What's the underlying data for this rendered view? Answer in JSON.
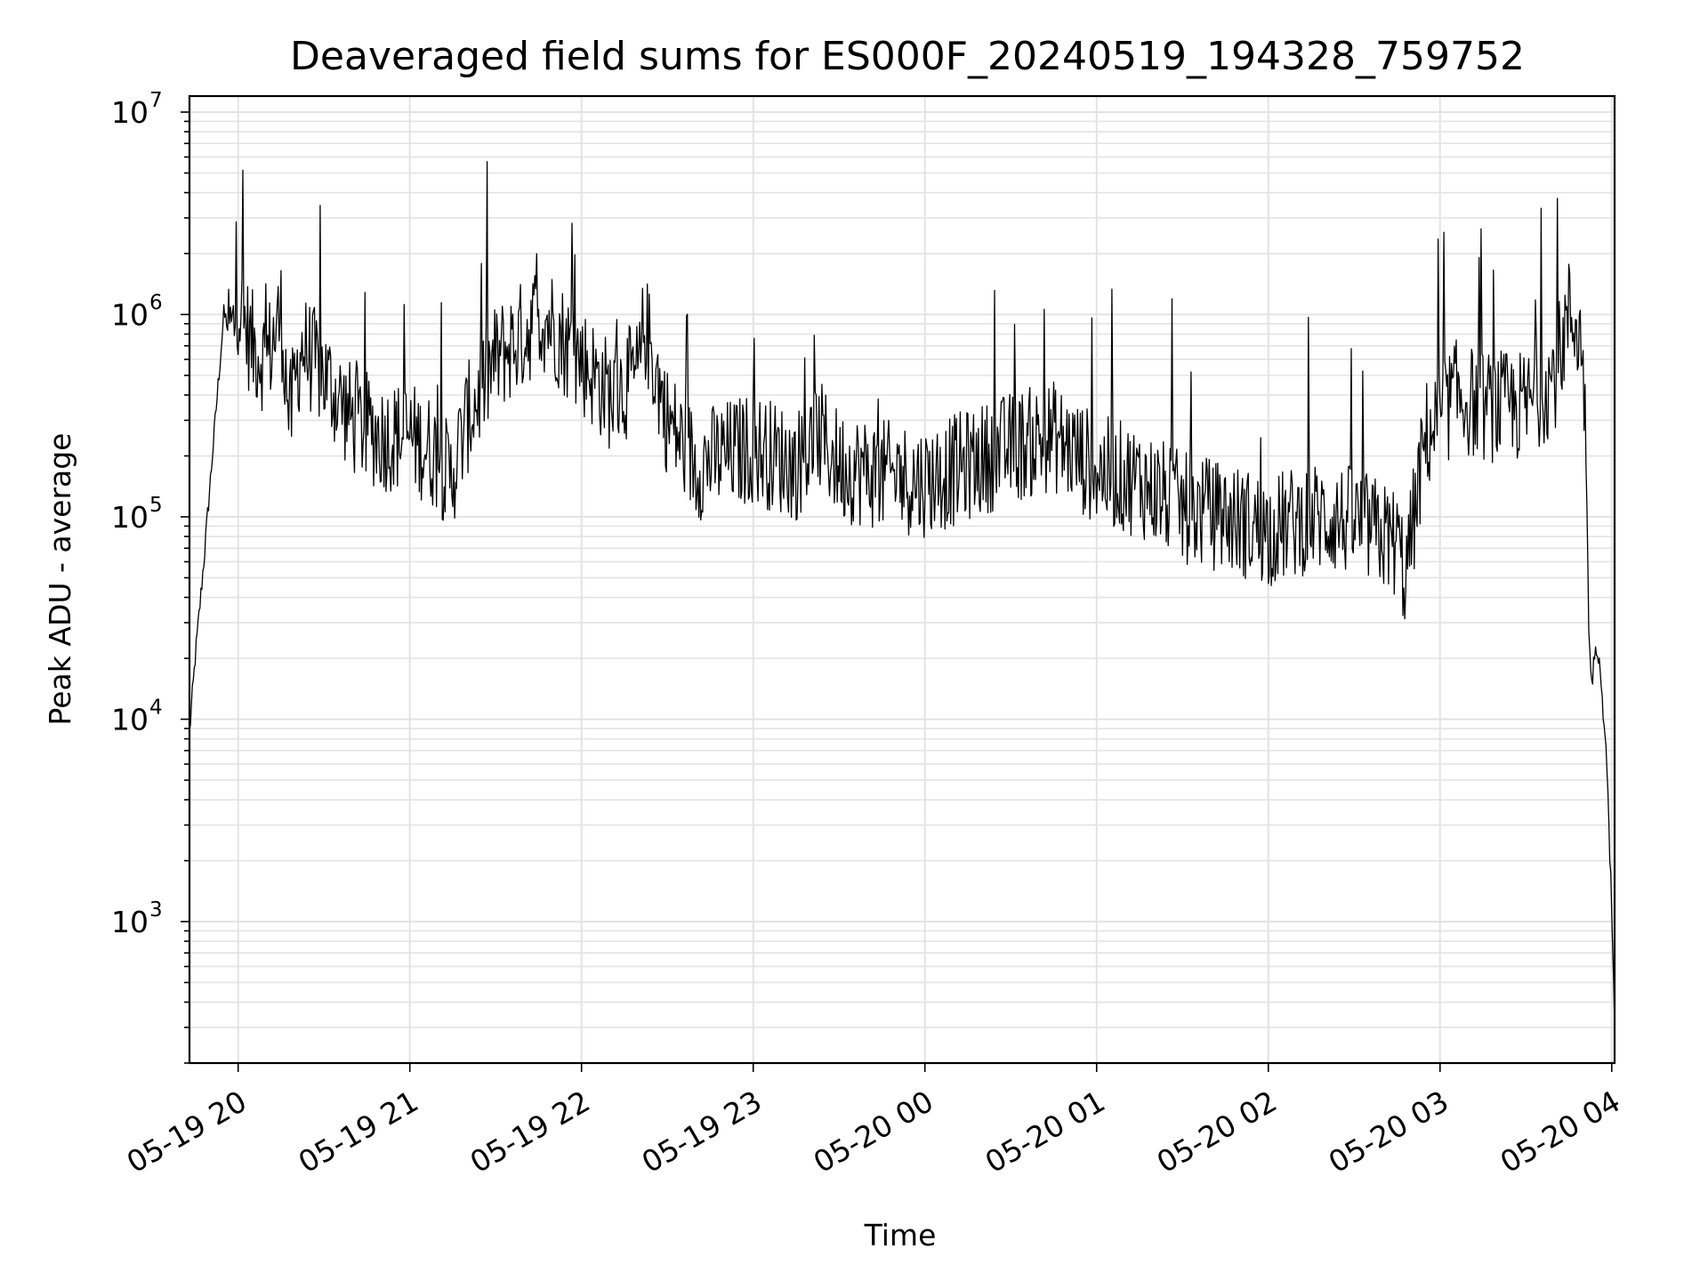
{
  "chart_data": {
    "type": "line",
    "title": "Deaveraged field sums for ES000F_20240519_194328_759752",
    "xlabel": "Time",
    "ylabel": "Peak ADU - average",
    "yscale": "log",
    "ylim": [
      200,
      12000000
    ],
    "xlim": [
      "2024-05-19 19:43",
      "2024-05-20 04:01"
    ],
    "x_ticks": [
      "05-19 20",
      "05-19 21",
      "05-19 22",
      "05-19 23",
      "05-20 00",
      "05-20 01",
      "05-20 02",
      "05-20 03",
      "05-20 04"
    ],
    "y_ticks": [
      {
        "value": 1000,
        "base": "10",
        "exp": "3"
      },
      {
        "value": 10000,
        "base": "10",
        "exp": "4"
      },
      {
        "value": 100000,
        "base": "10",
        "exp": "5"
      },
      {
        "value": 1000000,
        "base": "10",
        "exp": "6"
      },
      {
        "value": 10000000,
        "base": "10",
        "exp": "7"
      }
    ],
    "grid": true,
    "line_color": "#000000",
    "grid_color": "#e3e3e3",
    "series": [
      {
        "x": [
          "2024-05-19 19:43",
          "2024-05-19 19:45",
          "2024-05-19 19:48",
          "2024-05-19 19:52",
          "2024-05-19 19:55",
          "2024-05-19 19:58",
          "2024-05-19 20:00",
          "2024-05-19 20:01",
          "2024-05-19 20:05",
          "2024-05-19 20:10",
          "2024-05-19 20:15",
          "2024-05-19 20:18",
          "2024-05-19 20:22",
          "2024-05-19 20:30",
          "2024-05-19 20:40",
          "2024-05-19 20:50",
          "2024-05-19 21:00",
          "2024-05-19 21:10",
          "2024-05-19 21:14",
          "2024-05-19 21:20",
          "2024-05-19 21:30",
          "2024-05-19 21:40",
          "2024-05-19 21:45",
          "2024-05-19 21:50",
          "2024-05-19 21:55",
          "2024-05-19 22:00",
          "2024-05-19 22:10",
          "2024-05-19 22:20",
          "2024-05-19 22:22",
          "2024-05-19 22:30",
          "2024-05-19 22:40",
          "2024-05-19 22:50",
          "2024-05-19 23:00",
          "2024-05-19 23:15",
          "2024-05-19 23:23",
          "2024-05-19 23:30",
          "2024-05-19 23:45",
          "2024-05-20 00:00",
          "2024-05-20 00:15",
          "2024-05-20 00:30",
          "2024-05-20 00:45",
          "2024-05-20 01:00",
          "2024-05-20 01:15",
          "2024-05-20 01:30",
          "2024-05-20 01:45",
          "2024-05-20 02:00",
          "2024-05-20 02:15",
          "2024-05-20 02:30",
          "2024-05-20 02:40",
          "2024-05-20 02:45",
          "2024-05-20 02:48",
          "2024-05-20 02:50",
          "2024-05-20 02:55",
          "2024-05-20 03:00",
          "2024-05-20 03:05",
          "2024-05-20 03:15",
          "2024-05-20 03:30",
          "2024-05-20 03:40",
          "2024-05-20 03:45",
          "2024-05-20 03:48",
          "2024-05-20 03:50",
          "2024-05-20 03:51",
          "2024-05-20 03:52",
          "2024-05-20 03:53",
          "2024-05-20 03:54",
          "2024-05-20 03:55",
          "2024-05-20 03:56",
          "2024-05-20 03:57",
          "2024-05-20 03:58",
          "2024-05-20 03:59",
          "2024-05-20 04:00",
          "2024-05-20 04:01"
        ],
        "y": [
          8500,
          20000,
          60000,
          300000,
          1000000,
          800000,
          1200000,
          1000000,
          700000,
          600000,
          1000000,
          300000,
          700000,
          500000,
          300000,
          250000,
          250000,
          200000,
          150000,
          300000,
          600000,
          800000,
          1000000,
          900000,
          700000,
          600000,
          400000,
          500000,
          900000,
          300000,
          180000,
          200000,
          220000,
          180000,
          250000,
          180000,
          160000,
          150000,
          180000,
          220000,
          250000,
          170000,
          150000,
          110000,
          100000,
          85000,
          100000,
          95000,
          80000,
          75000,
          50000,
          80000,
          250000,
          300000,
          400000,
          350000,
          350000,
          500000,
          1000000,
          900000,
          600000,
          200000,
          30000,
          15000,
          20000,
          22000,
          18000,
          10000,
          8000,
          3000,
          1200,
          300
        ]
      }
    ]
  }
}
